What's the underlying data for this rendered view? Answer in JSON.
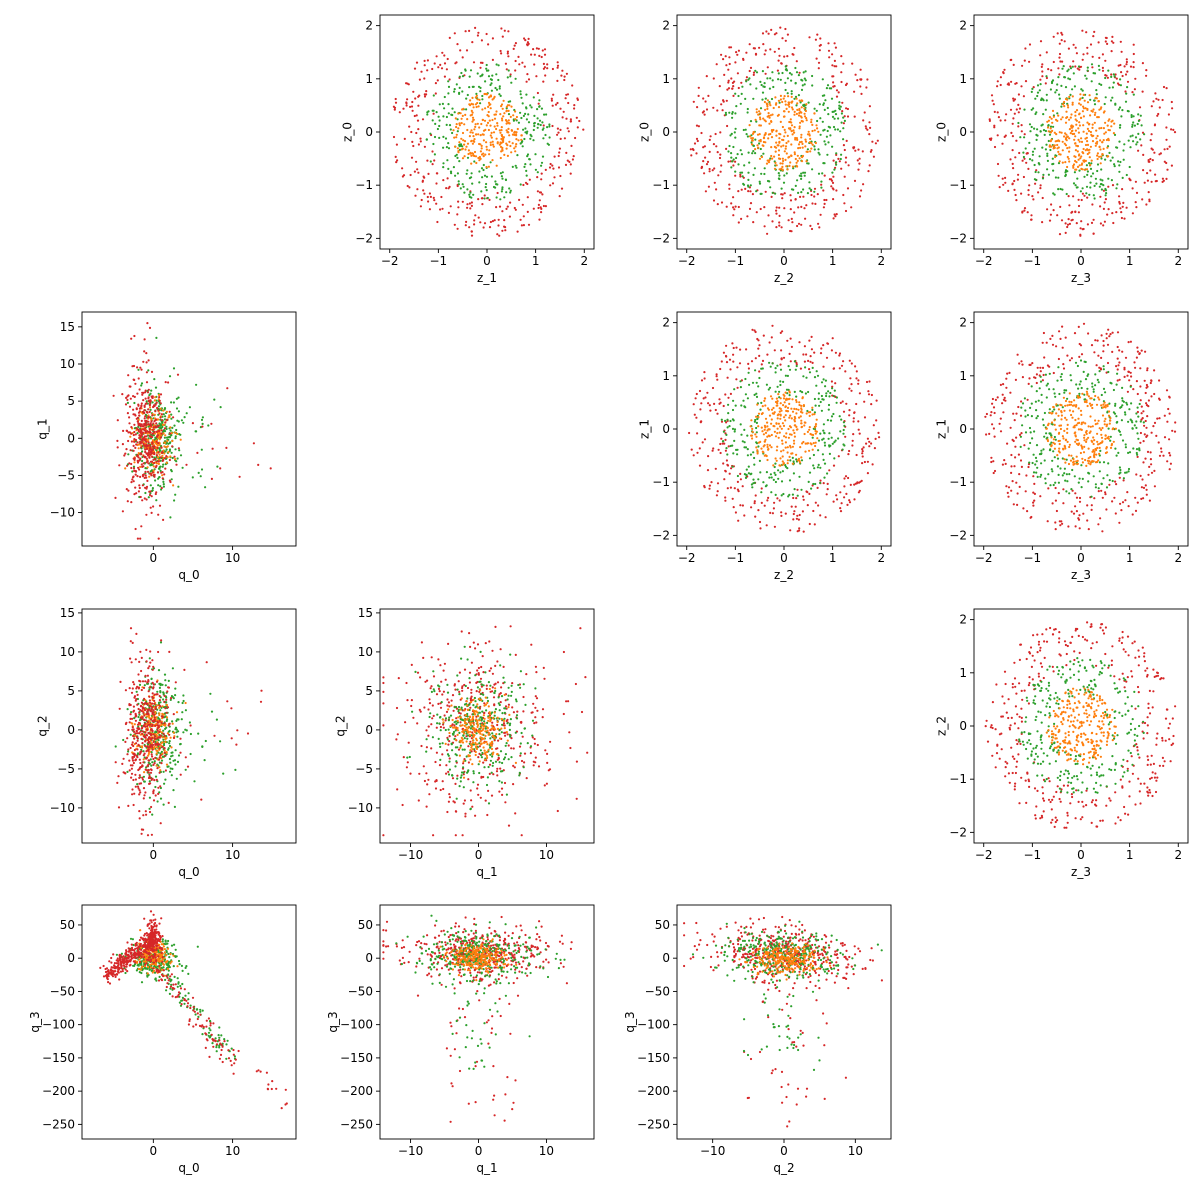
{
  "colors": {
    "orange": "#ff7f0e",
    "green": "#2ca02c",
    "red": "#d62728"
  },
  "chart_data": [
    {
      "type": "scatter",
      "name": "z_0 vs z_1",
      "row": 0,
      "col": 1,
      "xlabel": "z_1",
      "ylabel": "z_0",
      "xlim": [
        -2.2,
        2.2
      ],
      "ylim": [
        -2.2,
        2.2
      ],
      "xticks": [
        -2,
        -1,
        0,
        1,
        2
      ],
      "yticks": [
        -2,
        -1,
        0,
        1,
        2
      ],
      "gen": "rings"
    },
    {
      "type": "scatter",
      "name": "z_0 vs z_2",
      "row": 0,
      "col": 2,
      "xlabel": "z_2",
      "ylabel": "z_0",
      "xlim": [
        -2.2,
        2.2
      ],
      "ylim": [
        -2.2,
        2.2
      ],
      "xticks": [
        -2,
        -1,
        0,
        1,
        2
      ],
      "yticks": [
        -2,
        -1,
        0,
        1,
        2
      ],
      "gen": "rings"
    },
    {
      "type": "scatter",
      "name": "z_0 vs z_3",
      "row": 0,
      "col": 3,
      "xlabel": "z_3",
      "ylabel": "z_0",
      "xlim": [
        -2.2,
        2.2
      ],
      "ylim": [
        -2.2,
        2.2
      ],
      "xticks": [
        -2,
        -1,
        0,
        1,
        2
      ],
      "yticks": [
        -2,
        -1,
        0,
        1,
        2
      ],
      "gen": "rings"
    },
    {
      "type": "scatter",
      "name": "q_1 vs q_0",
      "row": 1,
      "col": 0,
      "xlabel": "q_0",
      "ylabel": "q_1",
      "xlim": [
        -9,
        18
      ],
      "ylim": [
        -14.5,
        17
      ],
      "xticks": [
        0,
        10
      ],
      "yticks": [
        -10,
        -5,
        0,
        5,
        10,
        15
      ],
      "gen": "q1q0"
    },
    {
      "type": "scatter",
      "name": "z_1 vs z_2",
      "row": 1,
      "col": 2,
      "xlabel": "z_2",
      "ylabel": "z_1",
      "xlim": [
        -2.2,
        2.2
      ],
      "ylim": [
        -2.2,
        2.2
      ],
      "xticks": [
        -2,
        -1,
        0,
        1,
        2
      ],
      "yticks": [
        -2,
        -1,
        0,
        1,
        2
      ],
      "gen": "rings"
    },
    {
      "type": "scatter",
      "name": "z_1 vs z_3",
      "row": 1,
      "col": 3,
      "xlabel": "z_3",
      "ylabel": "z_1",
      "xlim": [
        -2.2,
        2.2
      ],
      "ylim": [
        -2.2,
        2.2
      ],
      "xticks": [
        -2,
        -1,
        0,
        1,
        2
      ],
      "yticks": [
        -2,
        -1,
        0,
        1,
        2
      ],
      "gen": "rings"
    },
    {
      "type": "scatter",
      "name": "q_2 vs q_0",
      "row": 2,
      "col": 0,
      "xlabel": "q_0",
      "ylabel": "q_2",
      "xlim": [
        -9,
        18
      ],
      "ylim": [
        -14.5,
        15.5
      ],
      "xticks": [
        0,
        10
      ],
      "yticks": [
        -10,
        -5,
        0,
        5,
        10,
        15
      ],
      "gen": "q2q0"
    },
    {
      "type": "scatter",
      "name": "q_2 vs q_1",
      "row": 2,
      "col": 1,
      "xlabel": "q_1",
      "ylabel": "q_2",
      "xlim": [
        -14.5,
        17
      ],
      "ylim": [
        -14.5,
        15.5
      ],
      "xticks": [
        -10,
        0,
        10
      ],
      "yticks": [
        -10,
        -5,
        0,
        5,
        10,
        15
      ],
      "gen": "q2q1"
    },
    {
      "type": "scatter",
      "name": "z_2 vs z_3",
      "row": 2,
      "col": 3,
      "xlabel": "z_3",
      "ylabel": "z_2",
      "xlim": [
        -2.2,
        2.2
      ],
      "ylim": [
        -2.2,
        2.2
      ],
      "xticks": [
        -2,
        -1,
        0,
        1,
        2
      ],
      "yticks": [
        -2,
        -1,
        0,
        1,
        2
      ],
      "gen": "rings"
    },
    {
      "type": "scatter",
      "name": "q_3 vs q_0",
      "row": 3,
      "col": 0,
      "xlabel": "q_0",
      "ylabel": "q_3",
      "xlim": [
        -9,
        18
      ],
      "ylim": [
        -272,
        80
      ],
      "xticks": [
        0,
        10
      ],
      "yticks": [
        -250,
        -200,
        -150,
        -100,
        -50,
        0,
        50
      ],
      "gen": "q3q0"
    },
    {
      "type": "scatter",
      "name": "q_3 vs q_1",
      "row": 3,
      "col": 1,
      "xlabel": "q_1",
      "ylabel": "q_3",
      "xlim": [
        -14.5,
        17
      ],
      "ylim": [
        -272,
        80
      ],
      "xticks": [
        -10,
        0,
        10
      ],
      "yticks": [
        -250,
        -200,
        -150,
        -100,
        -50,
        0,
        50
      ],
      "gen": "q3q1"
    },
    {
      "type": "scatter",
      "name": "q_3 vs q_2",
      "row": 3,
      "col": 2,
      "xlabel": "q_2",
      "ylabel": "q_3",
      "xlim": [
        -15,
        15
      ],
      "ylim": [
        -272,
        80
      ],
      "xticks": [
        -10,
        0,
        10
      ],
      "yticks": [
        -250,
        -200,
        -150,
        -100,
        -50,
        0,
        50
      ],
      "gen": "q3q2"
    }
  ]
}
